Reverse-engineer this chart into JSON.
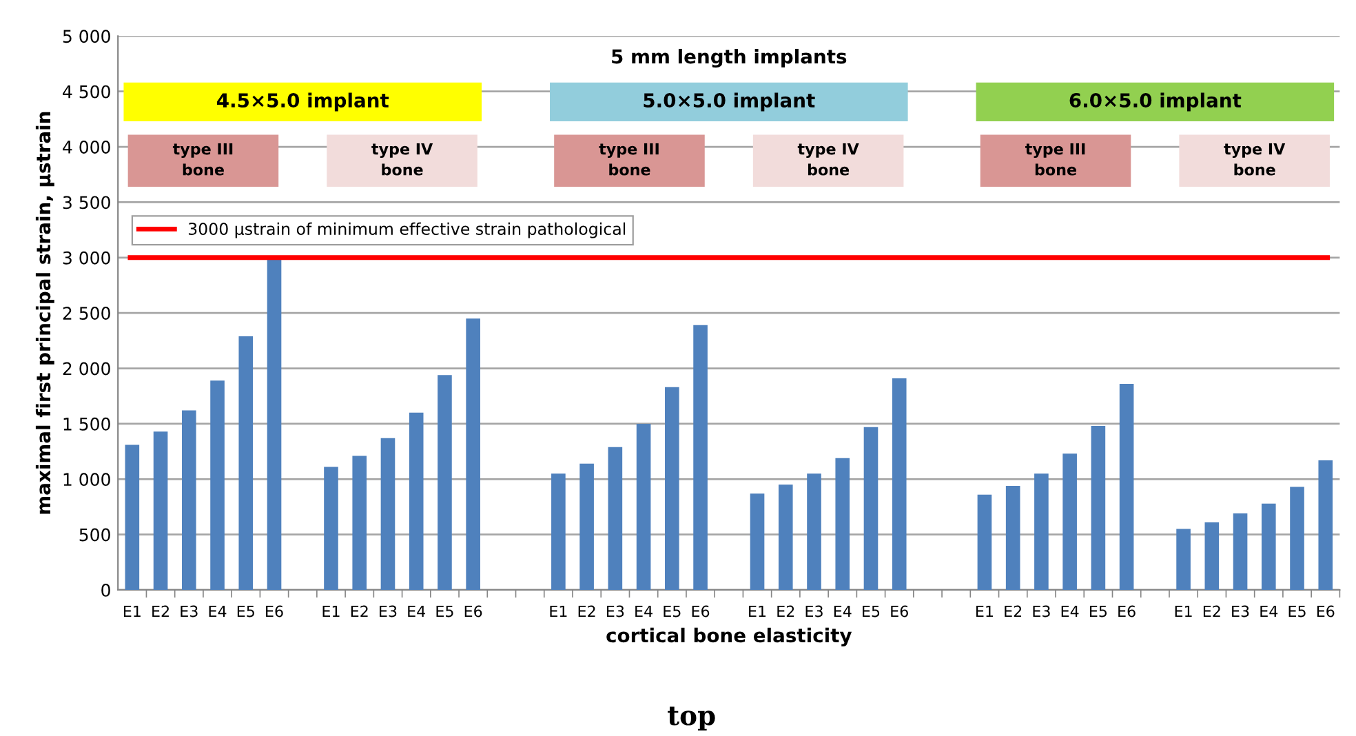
{
  "chart_data": {
    "type": "bar",
    "xlabel": "cortical bone elasticity",
    "ylabel": "maximal first principal strain, µstrain",
    "categories": [
      "E1",
      "E2",
      "E3",
      "E4",
      "E5",
      "E6",
      null,
      "E1",
      "E2",
      "E3",
      "E4",
      "E5",
      "E6",
      null,
      null,
      "E1",
      "E2",
      "E3",
      "E4",
      "E5",
      "E6",
      null,
      "E1",
      "E2",
      "E3",
      "E4",
      "E5",
      "E6",
      null,
      null,
      "E1",
      "E2",
      "E3",
      "E4",
      "E5",
      "E6",
      null,
      "E1",
      "E2",
      "E3",
      "E4",
      "E5",
      "E6"
    ],
    "values": [
      1310,
      1430,
      1620,
      1890,
      2290,
      3000,
      null,
      1110,
      1210,
      1370,
      1600,
      1940,
      2450,
      null,
      null,
      1050,
      1140,
      1290,
      1500,
      1830,
      2390,
      null,
      870,
      950,
      1050,
      1190,
      1470,
      1910,
      null,
      null,
      860,
      940,
      1050,
      1230,
      1480,
      1860,
      null,
      550,
      610,
      690,
      780,
      930,
      1170
    ],
    "color": "#4f81bd",
    "ylim": [
      0,
      5000
    ],
    "yticks": [
      {
        "value": 0,
        "label": "0"
      },
      {
        "value": 500,
        "label": "500"
      },
      {
        "value": 1000,
        "label": "1 000"
      },
      {
        "value": 1500,
        "label": "1 500"
      },
      {
        "value": 2000,
        "label": "2 000"
      },
      {
        "value": 2500,
        "label": "2 500"
      },
      {
        "value": 3000,
        "label": "3 000"
      },
      {
        "value": 3500,
        "label": "3 500"
      },
      {
        "value": 4000,
        "label": "4 000"
      },
      {
        "value": 4500,
        "label": "4 500"
      },
      {
        "value": 5000,
        "label": "5 000"
      }
    ],
    "grid": "y",
    "legend": "top left",
    "ref_lines": [
      {
        "axis": "y",
        "value": 3000,
        "label": "3000 µstrain of minimum effective strain pathological",
        "color": "#ff0000"
      }
    ],
    "annotations": [
      "5 mm length implants",
      "4.5×5.0 implant",
      "5.0×5.0 implant",
      "6.0×5.0 implant",
      "type III\nbone",
      "type IV\nbone",
      "type III\nbone",
      "type IV\nbone",
      "type III\nbone",
      "type IV\nbone",
      "top"
    ]
  }
}
